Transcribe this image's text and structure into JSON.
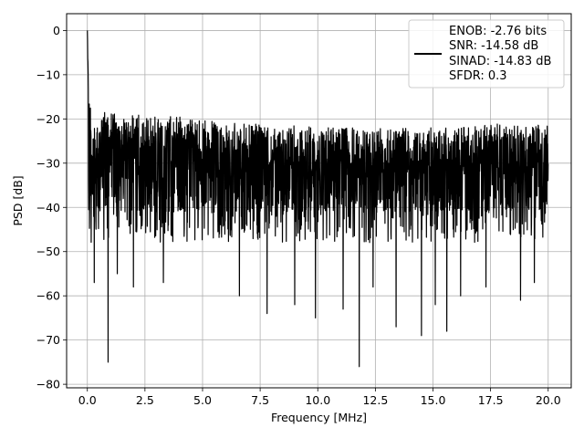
{
  "chart_data": {
    "type": "line",
    "xlabel": "Frequency [MHz]",
    "ylabel": "PSD [dB]",
    "xlim": [
      -0.9,
      21.0
    ],
    "ylim": [
      -80.8,
      3.8
    ],
    "xticks": [
      0.0,
      2.5,
      5.0,
      7.5,
      10.0,
      12.5,
      15.0,
      17.5,
      20.0
    ],
    "xtick_labels": [
      "0.0",
      "2.5",
      "5.0",
      "7.5",
      "10.0",
      "12.5",
      "15.0",
      "17.5",
      "20.0"
    ],
    "yticks": [
      0,
      -10,
      -20,
      -30,
      -40,
      -50,
      -60,
      -70,
      -80
    ],
    "ytick_labels": [
      "0",
      "−10",
      "−20",
      "−30",
      "−40",
      "−50",
      "−60",
      "−70",
      "−80"
    ],
    "grid": true,
    "legend_position": "top-right",
    "series": [
      {
        "color": "#000000",
        "x_range": [
          0,
          20
        ],
        "peak": {
          "x": 0.0,
          "y": 0.0
        },
        "upper_envelope": [
          [
            0.0,
            0.0
          ],
          [
            0.05,
            -10
          ],
          [
            0.15,
            -18
          ],
          [
            0.3,
            -21
          ],
          [
            1.0,
            -17
          ],
          [
            2.0,
            -19
          ],
          [
            3.5,
            -19
          ],
          [
            5.0,
            -20
          ],
          [
            6.5,
            -21
          ],
          [
            8.0,
            -21
          ],
          [
            10.0,
            -22
          ],
          [
            12.0,
            -22
          ],
          [
            14.0,
            -22
          ],
          [
            16.0,
            -22
          ],
          [
            18.0,
            -21
          ],
          [
            20.0,
            -21
          ]
        ],
        "mean_level": -35,
        "typical_lower": -48,
        "deep_nulls": [
          [
            0.3,
            -57
          ],
          [
            0.9,
            -75
          ],
          [
            1.3,
            -55
          ],
          [
            2.0,
            -58
          ],
          [
            3.3,
            -57
          ],
          [
            6.6,
            -60
          ],
          [
            7.8,
            -64
          ],
          [
            9.0,
            -62
          ],
          [
            9.9,
            -65
          ],
          [
            11.1,
            -63
          ],
          [
            11.8,
            -76
          ],
          [
            12.4,
            -58
          ],
          [
            13.4,
            -67
          ],
          [
            14.5,
            -69
          ],
          [
            15.1,
            -62
          ],
          [
            15.6,
            -68
          ],
          [
            16.2,
            -60
          ],
          [
            17.3,
            -58
          ],
          [
            18.8,
            -61
          ],
          [
            19.4,
            -57
          ]
        ]
      }
    ],
    "legend": {
      "lines": [
        "ENOB: -2.76 bits",
        "SNR: -14.58 dB",
        "SINAD: -14.83 dB",
        "SFDR: 0.3"
      ]
    }
  }
}
